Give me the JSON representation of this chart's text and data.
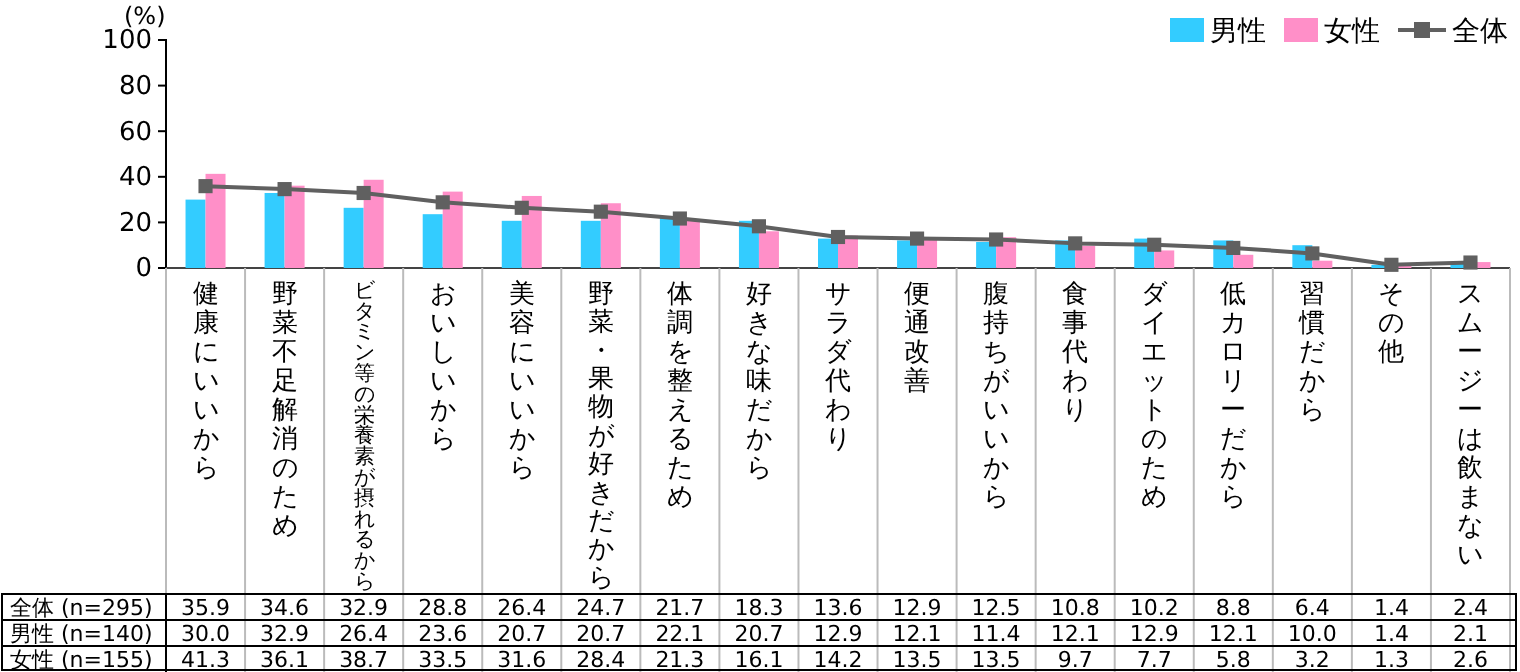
{
  "chart_data": {
    "type": "bar",
    "ylabel": "(%)",
    "categories": [
      "健康にいいから",
      "野菜不足解消のため",
      "ビタミン等の栄養素が摂れるから",
      "おいしいから",
      "美容にいいから",
      "野菜・果物が好きだから",
      "体調を整えるため",
      "好きな味だから",
      "サラダ代わり",
      "便通改善",
      "腹持ちがいいから",
      "食事代わり",
      "ダイエットのため",
      "低カロリーだから",
      "習慣だから",
      "その他",
      "スムージーは飲まない"
    ],
    "series": [
      {
        "name": "全体",
        "type": "line",
        "color": "#606060",
        "values": [
          35.9,
          34.6,
          32.9,
          28.8,
          26.4,
          24.7,
          21.7,
          18.3,
          13.6,
          12.9,
          12.5,
          10.8,
          10.2,
          8.8,
          6.4,
          1.4,
          2.4
        ],
        "value_labels": [
          "35.9",
          "34.6",
          "32.9",
          "28.8",
          "26.4",
          "24.7",
          "21.7",
          "18.3",
          "13.6",
          "12.9",
          "12.5",
          "10.8",
          "10.2",
          "8.8",
          "6.4",
          "1.4",
          "2.4"
        ]
      },
      {
        "name": "男性",
        "color": "#33ccff",
        "values": [
          30.0,
          32.9,
          26.4,
          23.6,
          20.7,
          20.7,
          22.1,
          20.7,
          12.9,
          12.1,
          11.4,
          12.1,
          12.9,
          12.1,
          10.0,
          1.4,
          2.1
        ],
        "value_labels": [
          "30.0",
          "32.9",
          "26.4",
          "23.6",
          "20.7",
          "20.7",
          "22.1",
          "20.7",
          "12.9",
          "12.1",
          "11.4",
          "12.1",
          "12.9",
          "12.1",
          "10.0",
          "1.4",
          "2.1"
        ]
      },
      {
        "name": "女性",
        "color": "#ff8fc8",
        "values": [
          41.3,
          36.1,
          38.7,
          33.5,
          31.6,
          28.4,
          21.3,
          16.1,
          14.2,
          13.5,
          13.5,
          9.7,
          7.7,
          5.8,
          3.2,
          1.3,
          2.6
        ],
        "value_labels": [
          "41.3",
          "36.1",
          "38.7",
          "33.5",
          "31.6",
          "28.4",
          "21.3",
          "16.1",
          "14.2",
          "13.5",
          "13.5",
          "9.7",
          "7.7",
          "5.8",
          "3.2",
          "1.3",
          "2.6"
        ]
      }
    ],
    "annotations": [
      "(n=295)",
      "(n=140)",
      "(n=155)"
    ],
    "ylim": [
      0,
      100
    ],
    "yticks": [
      0,
      20,
      40,
      60,
      80,
      100
    ],
    "grid": false,
    "legend": "top right",
    "marker": "square",
    "line_style": "solid"
  }
}
